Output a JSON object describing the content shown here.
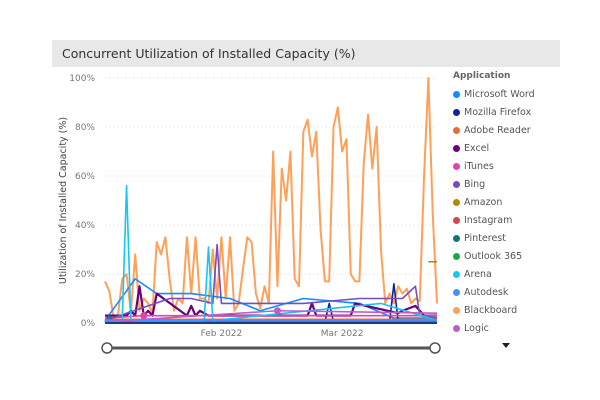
{
  "chart_data": {
    "type": "line",
    "title": "Concurrent Utilization of Installed Capacity (%)",
    "xlabel": "",
    "ylabel": "Utilization of Installed Capacity (%)",
    "ylim": [
      0,
      100
    ],
    "yticks": [
      "0%",
      "20%",
      "40%",
      "60%",
      "80%",
      "100%"
    ],
    "xticks": [
      {
        "date": "2022-02-01",
        "label": "Feb 2022"
      },
      {
        "date": "2022-03-01",
        "label": "Mar 2022"
      }
    ],
    "xlim": [
      "2022-01-05",
      "2022-03-23"
    ],
    "grid": true,
    "legend_title": "Application",
    "legend_position": "right",
    "series": [
      {
        "name": "Microsoft Word",
        "color": "#118DFF",
        "points": [
          [
            "2022-01-05",
            1
          ],
          [
            "2022-01-12",
            18
          ],
          [
            "2022-01-17",
            12
          ],
          [
            "2022-01-25",
            12
          ],
          [
            "2022-02-03",
            10
          ],
          [
            "2022-02-10",
            5
          ],
          [
            "2022-02-20",
            10
          ],
          [
            "2022-03-05",
            8
          ],
          [
            "2022-03-13",
            2
          ],
          [
            "2022-03-23",
            2
          ]
        ]
      },
      {
        "name": "Mozilla Firefox",
        "color": "#12239E",
        "points": [
          [
            "2022-01-05",
            0.5
          ],
          [
            "2022-02-25",
            0.5
          ],
          [
            "2022-02-26",
            8
          ],
          [
            "2022-02-27",
            0.5
          ],
          [
            "2022-03-12",
            0.5
          ],
          [
            "2022-03-13",
            16
          ],
          [
            "2022-03-14",
            0.5
          ],
          [
            "2022-03-23",
            0.5
          ]
        ]
      },
      {
        "name": "Adobe Reader",
        "color": "#E66C37",
        "points": [
          [
            "2022-01-05",
            1.5
          ],
          [
            "2022-02-20",
            1.5
          ],
          [
            "2022-03-23",
            1.5
          ]
        ]
      },
      {
        "name": "Excel",
        "color": "#6B007B",
        "points": [
          [
            "2022-01-05",
            3
          ],
          [
            "2022-01-10",
            3
          ],
          [
            "2022-01-11",
            5
          ],
          [
            "2022-01-12",
            3
          ],
          [
            "2022-01-13",
            15
          ],
          [
            "2022-01-14",
            3
          ],
          [
            "2022-01-15",
            5
          ],
          [
            "2022-01-16",
            3
          ],
          [
            "2022-01-17",
            12
          ],
          [
            "2022-01-24",
            3
          ],
          [
            "2022-01-25",
            7
          ],
          [
            "2022-01-26",
            3
          ],
          [
            "2022-01-27",
            5
          ],
          [
            "2022-01-29",
            3
          ],
          [
            "2022-02-21",
            3
          ],
          [
            "2022-02-22",
            8
          ],
          [
            "2022-02-23",
            3
          ],
          [
            "2022-03-03",
            3
          ],
          [
            "2022-03-04",
            8
          ],
          [
            "2022-03-14",
            4
          ],
          [
            "2022-03-15",
            5
          ],
          [
            "2022-03-18",
            7
          ],
          [
            "2022-03-20",
            3
          ],
          [
            "2022-03-23",
            3
          ]
        ]
      },
      {
        "name": "iTunes",
        "color": "#E044A7",
        "points": [
          [
            "2022-01-05",
            2
          ],
          [
            "2022-01-14",
            3
          ],
          [
            "2022-03-23",
            3
          ]
        ]
      },
      {
        "name": "Bing",
        "color": "#744EC2",
        "points": [
          [
            "2022-01-05",
            1
          ],
          [
            "2022-01-20",
            10
          ],
          [
            "2022-01-25",
            10
          ],
          [
            "2022-01-30",
            8
          ],
          [
            "2022-01-31",
            32
          ],
          [
            "2022-02-01",
            8
          ],
          [
            "2022-02-20",
            8
          ],
          [
            "2022-03-05",
            10
          ],
          [
            "2022-03-15",
            10
          ],
          [
            "2022-03-18",
            15
          ],
          [
            "2022-03-19",
            3
          ],
          [
            "2022-03-23",
            2
          ]
        ]
      },
      {
        "name": "Amazon",
        "color": "#B08A00",
        "points": [
          [
            "2022-03-21",
            25
          ],
          [
            "2022-03-23",
            25
          ]
        ]
      },
      {
        "name": "Instagram",
        "color": "#D64550",
        "points": [
          [
            "2022-01-05",
            0.8
          ],
          [
            "2022-03-23",
            0.8
          ]
        ]
      },
      {
        "name": "Pinterest",
        "color": "#197278",
        "points": [
          [
            "2022-01-05",
            0.3
          ],
          [
            "2022-01-06",
            3
          ],
          [
            "2022-01-07",
            0.3
          ],
          [
            "2022-03-23",
            0.3
          ]
        ]
      },
      {
        "name": "Outlook 365",
        "color": "#1AAB40",
        "points": [
          [
            "2022-01-05",
            0.5
          ],
          [
            "2022-03-23",
            0.5
          ]
        ]
      },
      {
        "name": "Arena",
        "color": "#15C6F4",
        "points": [
          [
            "2022-01-05",
            1
          ],
          [
            "2022-01-09",
            1
          ],
          [
            "2022-01-10",
            56
          ],
          [
            "2022-01-11",
            1
          ],
          [
            "2022-01-28",
            1
          ],
          [
            "2022-01-29",
            31
          ],
          [
            "2022-01-30",
            1
          ],
          [
            "2022-03-10",
            8
          ],
          [
            "2022-03-23",
            1
          ]
        ]
      },
      {
        "name": "Autodesk",
        "color": "#4092FF",
        "points": [
          [
            "2022-01-05",
            1.2
          ],
          [
            "2022-03-23",
            1.2
          ]
        ]
      },
      {
        "name": "Blackboard",
        "color": "#FFA058",
        "values_start": "2022-01-05",
        "values": [
          17,
          13,
          2,
          3,
          18,
          20,
          4,
          28,
          5,
          10,
          8,
          4,
          33,
          28,
          35,
          18,
          5,
          10,
          8,
          35,
          12,
          35,
          10,
          10,
          8,
          30,
          10,
          35,
          10,
          35,
          5,
          8,
          22,
          35,
          33,
          12,
          6,
          15,
          8,
          70,
          15,
          63,
          50,
          70,
          18,
          15,
          78,
          83,
          68,
          78,
          38,
          17,
          17,
          80,
          88,
          70,
          75,
          20,
          17,
          17,
          65,
          85,
          63,
          80,
          30,
          8,
          12,
          8,
          15,
          12,
          14,
          8,
          10,
          9,
          60,
          100,
          45,
          8
        ]
      },
      {
        "name": "Logic",
        "color": "#BE5DC9",
        "points": [
          [
            "2022-01-05",
            0.5
          ],
          [
            "2022-02-14",
            5
          ],
          [
            "2022-03-23",
            4
          ]
        ]
      }
    ]
  }
}
